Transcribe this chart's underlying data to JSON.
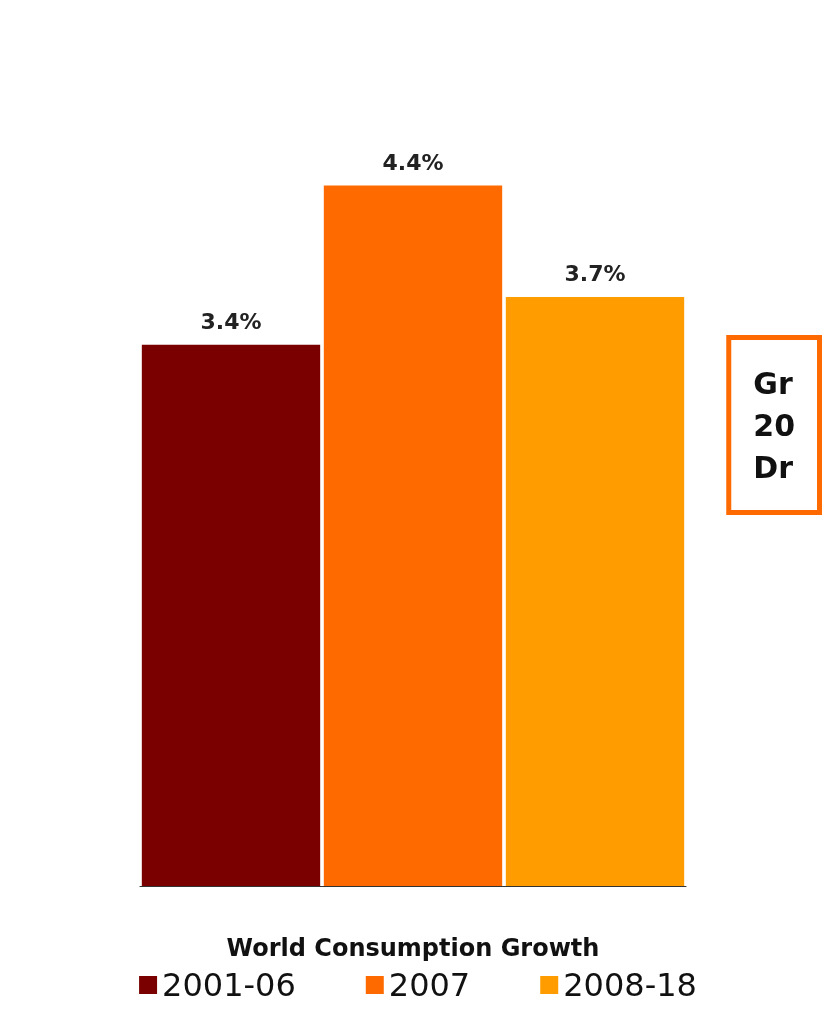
{
  "chart_data": {
    "type": "bar",
    "categories": [
      null,
      null,
      null
    ],
    "xlabel": "World Consumption Growth",
    "stacked": true,
    "series": [
      {
        "name": "2001-06",
        "color": "#7a0000",
        "values": [
          3.4,
          null,
          null
        ],
        "value_labels": [
          "3.4%",
          null,
          null
        ]
      },
      {
        "name": "2007",
        "color": "#ff6a00",
        "values": [
          null,
          4.4,
          null
        ],
        "value_labels": [
          null,
          "4.4%",
          null
        ]
      },
      {
        "name": "2008-18",
        "color": "#ff9d00",
        "values": [
          null,
          null,
          3.7
        ],
        "value_labels": [
          null,
          null,
          "3.7%"
        ]
      }
    ],
    "annotations": [
      "Gr\n20\nDr"
    ],
    "legend": "bottom",
    "grid": false
  }
}
